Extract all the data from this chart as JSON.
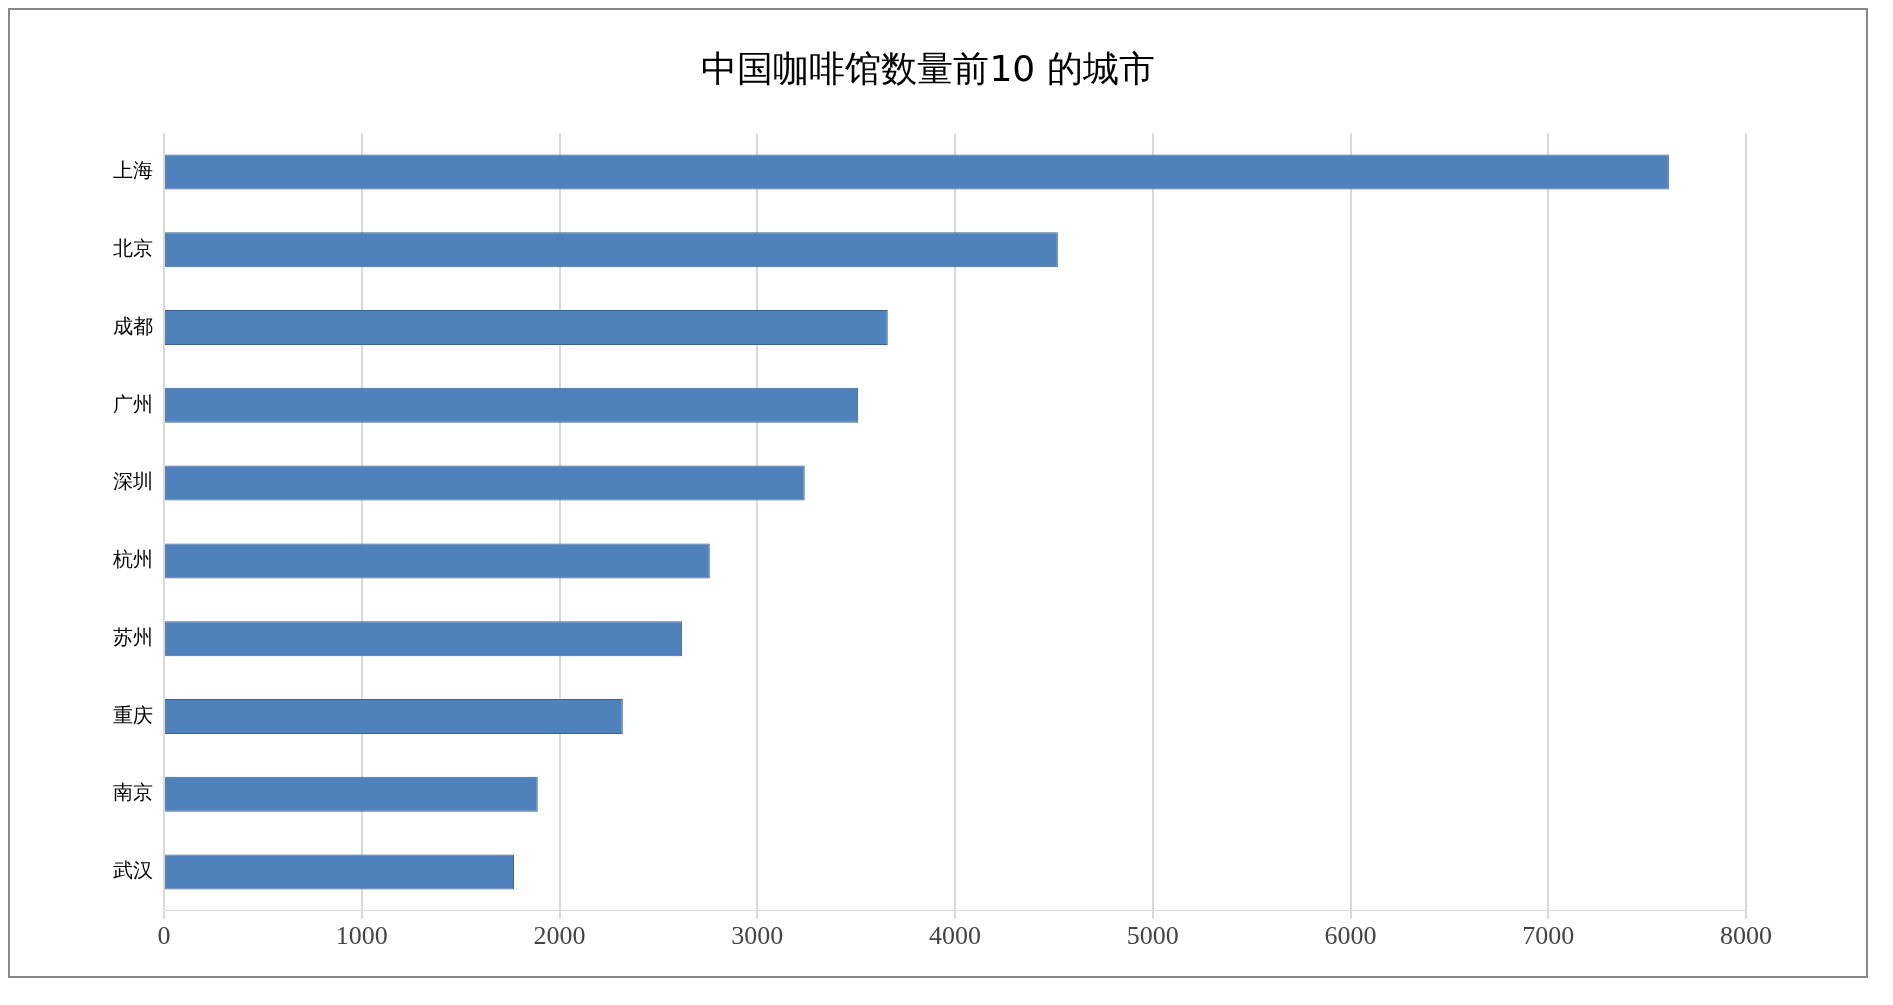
{
  "chart_data": {
    "type": "bar",
    "orientation": "horizontal",
    "title": "中国咖啡馆数量前10 的城市",
    "categories": [
      "上海",
      "北京",
      "成都",
      "广州",
      "深圳",
      "杭州",
      "苏州",
      "重庆",
      "南京",
      "武汉"
    ],
    "values": [
      7610,
      4520,
      3660,
      3510,
      3240,
      2760,
      2620,
      2320,
      1890,
      1770
    ],
    "color": "#4f81bd",
    "xlim": [
      0,
      8000
    ],
    "xticks": [
      0,
      1000,
      2000,
      3000,
      4000,
      5000,
      6000,
      7000,
      8000
    ],
    "grid": "x",
    "legend": false
  }
}
